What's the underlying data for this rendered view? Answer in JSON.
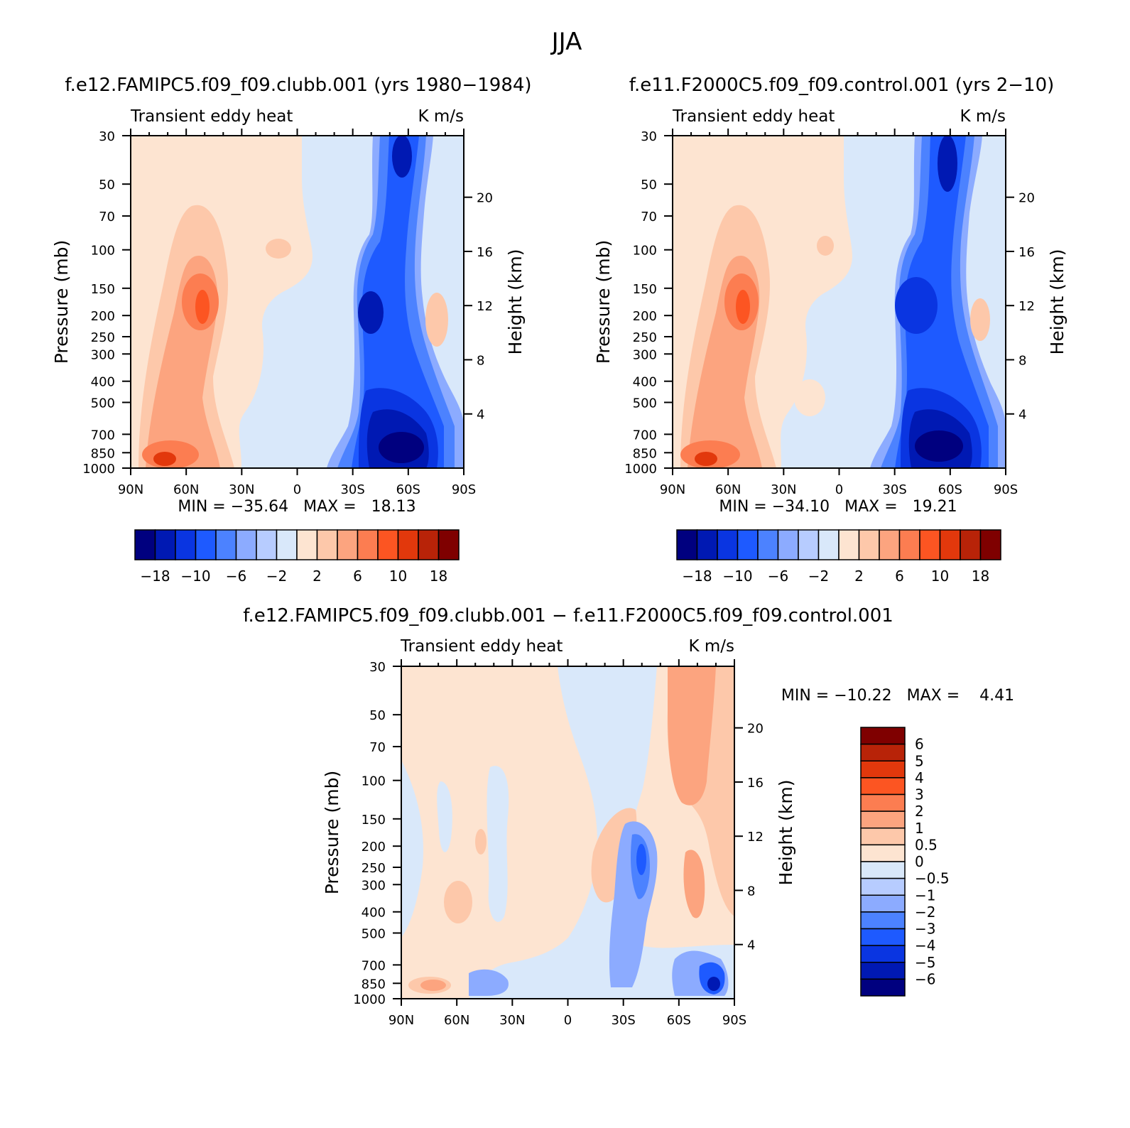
{
  "figure": {
    "season_title": "JJA"
  },
  "panels": [
    {
      "title": "f.e12.FAMIPC5.f09_f09.clubb.001 (yrs 1980−1984)",
      "field_label": "Transient eddy heat",
      "units": "K m/s",
      "stats_text": "MIN = −35.64   MAX =   18.13"
    },
    {
      "title": "f.e11.F2000C5.f09_f09.control.001 (yrs 2−10)",
      "field_label": "Transient eddy heat",
      "units": "K m/s",
      "stats_text": "MIN = −34.10   MAX =   19.21"
    },
    {
      "title": "f.e12.FAMIPC5.f09_f09.clubb.001 − f.e11.F2000C5.f09_f09.control.001",
      "field_label": "Transient eddy heat",
      "units": "K m/s",
      "stats_text": "MIN = −10.22   MAX =    4.41"
    }
  ],
  "axes": {
    "y_label": "Pressure (mb)",
    "y2_label": "Height (km)",
    "pressure_ticks": [
      "30",
      "50",
      "70",
      "100",
      "150",
      "200",
      "250",
      "300",
      "400",
      "500",
      "700",
      "850",
      "1000"
    ],
    "height_ticks": [
      "20",
      "16",
      "12",
      "8",
      "4"
    ],
    "lat_ticks": [
      "90N",
      "60N",
      "30N",
      "0",
      "30S",
      "60S",
      "90S"
    ]
  },
  "colorbars": {
    "main": {
      "colors": [
        "#00007f",
        "#0019b3",
        "#0a35e1",
        "#1e5aff",
        "#4c82ff",
        "#8cabff",
        "#b7ccff",
        "#d9e8fa",
        "#fde4d1",
        "#fdc8aa",
        "#fca47f",
        "#fc7d51",
        "#fc5522",
        "#e2380c",
        "#b82308",
        "#7f0000"
      ],
      "labels": [
        "−18",
        "−10",
        "−6",
        "−2",
        "2",
        "6",
        "10",
        "18"
      ]
    },
    "diff": {
      "colors": [
        "#00007f",
        "#0019b3",
        "#0a35e1",
        "#1e5aff",
        "#4c82ff",
        "#8cabff",
        "#b7ccff",
        "#d9e8fa",
        "#fde4d1",
        "#fdc8aa",
        "#fca47f",
        "#fc7d51",
        "#fc5522",
        "#e2380c",
        "#b82308",
        "#7f0000"
      ],
      "labels": [
        "6",
        "5",
        "4",
        "3",
        "2",
        "1",
        "0.5",
        "0",
        "−0.5",
        "−1",
        "−2",
        "−3",
        "−4",
        "−5",
        "−6"
      ]
    }
  },
  "chart_data": [
    {
      "type": "heatmap",
      "title": "f.e12.FAMIPC5.f09_f09.clubb.001 (yrs 1980−1984)",
      "field": "Transient eddy heat",
      "units": "K m/s",
      "xlabel": "",
      "ylabel": "Pressure (mb)",
      "y2label": "Height (km)",
      "x_categories": [
        "90N",
        "60N",
        "30N",
        "0",
        "30S",
        "60S",
        "90S"
      ],
      "y_pressure_mb": [
        30,
        50,
        70,
        100,
        150,
        200,
        250,
        300,
        400,
        500,
        700,
        850,
        1000
      ],
      "y_scale": "log",
      "levels": [
        -18,
        -14,
        -10,
        -8,
        -6,
        -4,
        -2,
        0,
        2,
        4,
        6,
        8,
        10,
        14,
        18
      ],
      "min": -35.64,
      "max": 18.13,
      "features": [
        {
          "lat": 55,
          "p": 200,
          "value": 12
        },
        {
          "lat": 70,
          "p": 900,
          "value": 12
        },
        {
          "lat": -55,
          "p": 850,
          "value": -30
        },
        {
          "lat": -42,
          "p": 200,
          "value": -18
        },
        {
          "lat": -60,
          "p": 40,
          "value": -14
        }
      ]
    },
    {
      "type": "heatmap",
      "title": "f.e11.F2000C5.f09_f09.control.001 (yrs 2−10)",
      "field": "Transient eddy heat",
      "units": "K m/s",
      "xlabel": "",
      "ylabel": "Pressure (mb)",
      "y2label": "Height (km)",
      "x_categories": [
        "90N",
        "60N",
        "30N",
        "0",
        "30S",
        "60S",
        "90S"
      ],
      "y_pressure_mb": [
        30,
        50,
        70,
        100,
        150,
        200,
        250,
        300,
        400,
        500,
        700,
        850,
        1000
      ],
      "y_scale": "log",
      "levels": [
        -18,
        -14,
        -10,
        -8,
        -6,
        -4,
        -2,
        0,
        2,
        4,
        6,
        8,
        10,
        14,
        18
      ],
      "min": -34.1,
      "max": 19.21,
      "features": [
        {
          "lat": 55,
          "p": 200,
          "value": 12
        },
        {
          "lat": 70,
          "p": 900,
          "value": 12
        },
        {
          "lat": -55,
          "p": 850,
          "value": -30
        },
        {
          "lat": -45,
          "p": 200,
          "value": -16
        },
        {
          "lat": -60,
          "p": 40,
          "value": -14
        }
      ]
    },
    {
      "type": "heatmap",
      "title": "f.e12.FAMIPC5.f09_f09.clubb.001 − f.e11.F2000C5.f09_f09.control.001",
      "field": "Transient eddy heat",
      "units": "K m/s",
      "xlabel": "",
      "ylabel": "Pressure (mb)",
      "y2label": "Height (km)",
      "x_categories": [
        "90N",
        "60N",
        "30N",
        "0",
        "30S",
        "60S",
        "90S"
      ],
      "y_pressure_mb": [
        30,
        50,
        70,
        100,
        150,
        200,
        250,
        300,
        400,
        500,
        700,
        850,
        1000
      ],
      "y_scale": "log",
      "levels": [
        -6,
        -5,
        -4,
        -3,
        -2,
        -1,
        -0.5,
        0,
        0.5,
        1,
        2,
        3,
        4,
        5,
        6
      ],
      "min": -10.22,
      "max": 4.41,
      "features": [
        {
          "lat": -62,
          "p": 60,
          "value": 1.5
        },
        {
          "lat": -40,
          "p": 200,
          "value": -3.5
        },
        {
          "lat": -75,
          "p": 850,
          "value": -4
        },
        {
          "lat": 75,
          "p": 870,
          "value": 1.5
        }
      ]
    }
  ]
}
